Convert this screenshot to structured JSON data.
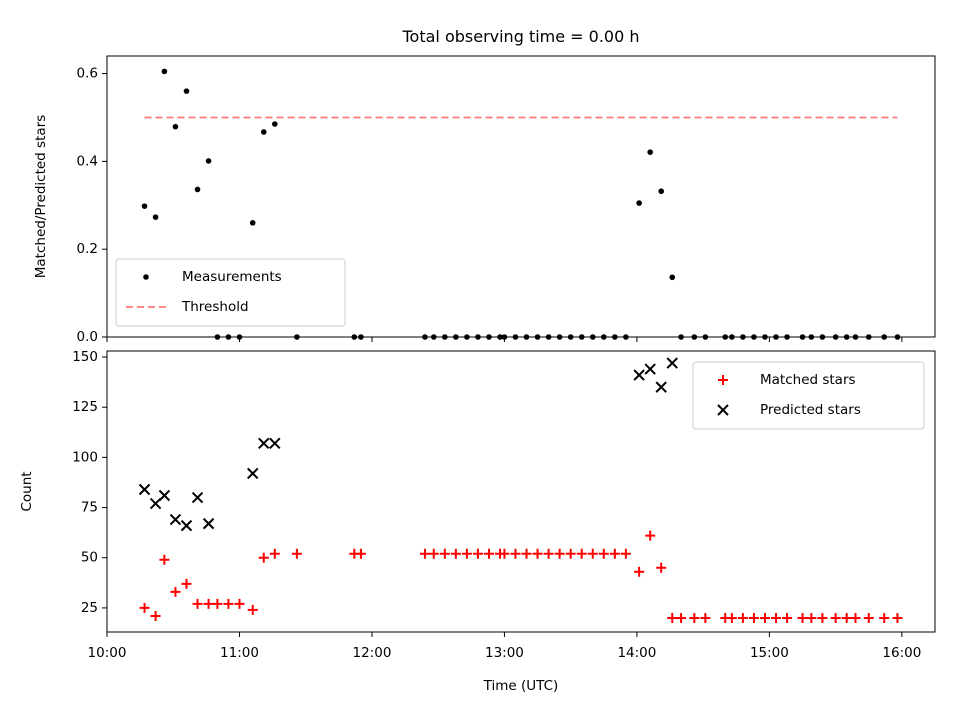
{
  "chart_data": [
    {
      "type": "scatter",
      "title": "Total observing time = 0.00 h",
      "xlabel": "",
      "ylabel": "Matched/Predicted stars",
      "xlim": [
        "10:00",
        "16:15"
      ],
      "ylim": [
        0,
        0.64
      ],
      "yticks": [
        0.0,
        0.2,
        0.4,
        0.6
      ],
      "yticklabels": [
        "0.0",
        "0.2",
        "0.4",
        "0.6"
      ],
      "legend_position": "lower-left",
      "legend": [
        "Measurements",
        "Threshold"
      ],
      "series": [
        {
          "name": "Measurements",
          "color": "#000000",
          "marker": "dot",
          "points": [
            [
              "10:17",
              0.298
            ],
            [
              "10:22",
              0.273
            ],
            [
              "10:26",
              0.605
            ],
            [
              "10:31",
              0.479
            ],
            [
              "10:36",
              0.56
            ],
            [
              "10:41",
              0.336
            ],
            [
              "10:46",
              0.401
            ],
            [
              "10:50",
              0.0
            ],
            [
              "10:55",
              0.0
            ],
            [
              "11:00",
              0.0
            ],
            [
              "11:06",
              0.26
            ],
            [
              "11:11",
              0.467
            ],
            [
              "11:16",
              0.485
            ],
            [
              "11:26",
              0.0
            ],
            [
              "11:52",
              0.0
            ],
            [
              "11:55",
              0.0
            ],
            [
              "12:24",
              0.0
            ],
            [
              "12:28",
              0.0
            ],
            [
              "12:33",
              0.0
            ],
            [
              "12:38",
              0.0
            ],
            [
              "12:43",
              0.0
            ],
            [
              "12:48",
              0.0
            ],
            [
              "12:53",
              0.0
            ],
            [
              "12:58",
              0.0
            ],
            [
              "13:00",
              0.0
            ],
            [
              "13:05",
              0.0
            ],
            [
              "13:10",
              0.0
            ],
            [
              "13:15",
              0.0
            ],
            [
              "13:20",
              0.0
            ],
            [
              "13:25",
              0.0
            ],
            [
              "13:30",
              0.0
            ],
            [
              "13:35",
              0.0
            ],
            [
              "13:40",
              0.0
            ],
            [
              "13:45",
              0.0
            ],
            [
              "13:50",
              0.0
            ],
            [
              "13:55",
              0.0
            ],
            [
              "14:01",
              0.305
            ],
            [
              "14:06",
              0.421
            ],
            [
              "14:11",
              0.332
            ],
            [
              "14:16",
              0.136
            ],
            [
              "14:20",
              0.0
            ],
            [
              "14:26",
              0.0
            ],
            [
              "14:31",
              0.0
            ],
            [
              "14:40",
              0.0
            ],
            [
              "14:43",
              0.0
            ],
            [
              "14:48",
              0.0
            ],
            [
              "14:53",
              0.0
            ],
            [
              "14:58",
              0.0
            ],
            [
              "15:03",
              0.0
            ],
            [
              "15:08",
              0.0
            ],
            [
              "15:15",
              0.0
            ],
            [
              "15:19",
              0.0
            ],
            [
              "15:24",
              0.0
            ],
            [
              "15:30",
              0.0
            ],
            [
              "15:35",
              0.0
            ],
            [
              "15:39",
              0.0
            ],
            [
              "15:45",
              0.0
            ],
            [
              "15:52",
              0.0
            ],
            [
              "15:58",
              0.0
            ]
          ]
        },
        {
          "name": "Threshold",
          "color": "#ff7777",
          "style": "dashed",
          "points": [
            [
              "10:17",
              0.5
            ],
            [
              "15:58",
              0.5
            ]
          ]
        }
      ]
    },
    {
      "type": "scatter",
      "title": "",
      "xlabel": "Time (UTC)",
      "ylabel": "Count",
      "xlim": [
        "10:00",
        "16:15"
      ],
      "ylim": [
        13,
        153
      ],
      "xticks": [
        "10:00",
        "11:00",
        "12:00",
        "13:00",
        "14:00",
        "15:00",
        "16:00"
      ],
      "yticks": [
        25,
        50,
        75,
        100,
        125,
        150
      ],
      "legend_position": "upper-right",
      "legend": [
        "Matched stars",
        "Predicted stars"
      ],
      "series": [
        {
          "name": "Matched stars",
          "color": "#ff0000",
          "marker": "plus",
          "points": [
            [
              "10:17",
              25
            ],
            [
              "10:22",
              21
            ],
            [
              "10:26",
              49
            ],
            [
              "10:31",
              33
            ],
            [
              "10:36",
              37
            ],
            [
              "10:41",
              27
            ],
            [
              "10:46",
              27
            ],
            [
              "10:50",
              27
            ],
            [
              "10:55",
              27
            ],
            [
              "11:00",
              27
            ],
            [
              "11:06",
              24
            ],
            [
              "11:11",
              50
            ],
            [
              "11:16",
              52
            ],
            [
              "11:26",
              52
            ],
            [
              "11:52",
              52
            ],
            [
              "11:55",
              52
            ],
            [
              "12:24",
              52
            ],
            [
              "12:28",
              52
            ],
            [
              "12:33",
              52
            ],
            [
              "12:38",
              52
            ],
            [
              "12:43",
              52
            ],
            [
              "12:48",
              52
            ],
            [
              "12:53",
              52
            ],
            [
              "12:58",
              52
            ],
            [
              "13:00",
              52
            ],
            [
              "13:05",
              52
            ],
            [
              "13:10",
              52
            ],
            [
              "13:15",
              52
            ],
            [
              "13:20",
              52
            ],
            [
              "13:25",
              52
            ],
            [
              "13:30",
              52
            ],
            [
              "13:35",
              52
            ],
            [
              "13:40",
              52
            ],
            [
              "13:45",
              52
            ],
            [
              "13:50",
              52
            ],
            [
              "13:55",
              52
            ],
            [
              "14:01",
              43
            ],
            [
              "14:06",
              61
            ],
            [
              "14:11",
              45
            ],
            [
              "14:16",
              20
            ],
            [
              "14:20",
              20
            ],
            [
              "14:26",
              20
            ],
            [
              "14:31",
              20
            ],
            [
              "14:40",
              20
            ],
            [
              "14:43",
              20
            ],
            [
              "14:48",
              20
            ],
            [
              "14:53",
              20
            ],
            [
              "14:58",
              20
            ],
            [
              "15:03",
              20
            ],
            [
              "15:08",
              20
            ],
            [
              "15:15",
              20
            ],
            [
              "15:19",
              20
            ],
            [
              "15:24",
              20
            ],
            [
              "15:30",
              20
            ],
            [
              "15:35",
              20
            ],
            [
              "15:39",
              20
            ],
            [
              "15:45",
              20
            ],
            [
              "15:52",
              20
            ],
            [
              "15:58",
              20
            ]
          ]
        },
        {
          "name": "Predicted stars",
          "color": "#000000",
          "marker": "x",
          "points": [
            [
              "10:17",
              84
            ],
            [
              "10:22",
              77
            ],
            [
              "10:26",
              81
            ],
            [
              "10:31",
              69
            ],
            [
              "10:36",
              66
            ],
            [
              "10:41",
              80
            ],
            [
              "10:46",
              67
            ],
            [
              "11:06",
              92
            ],
            [
              "11:11",
              107
            ],
            [
              "11:16",
              107
            ],
            [
              "14:01",
              141
            ],
            [
              "14:06",
              144
            ],
            [
              "14:11",
              135
            ],
            [
              "14:16",
              147
            ]
          ]
        }
      ]
    }
  ]
}
